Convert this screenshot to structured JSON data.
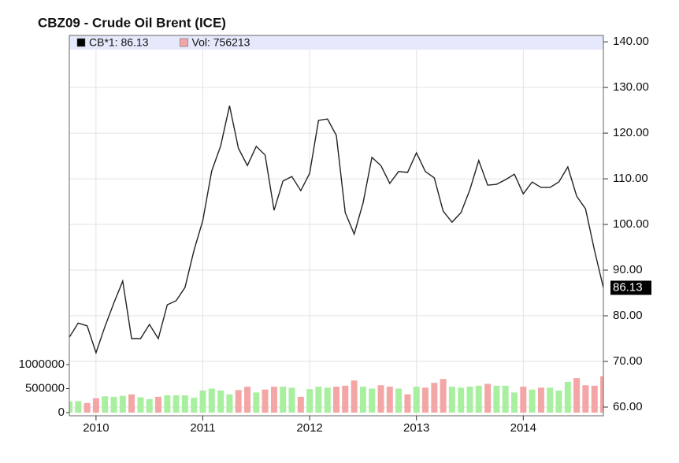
{
  "chart_data": {
    "type": "line",
    "title": "CBZ09 - Crude Oil Brent (ICE)",
    "x": [
      2009.75,
      2009.833,
      2009.917,
      2010,
      2010.083,
      2010.167,
      2010.25,
      2010.333,
      2010.417,
      2010.5,
      2010.583,
      2010.667,
      2010.75,
      2010.833,
      2010.917,
      2011,
      2011.083,
      2011.167,
      2011.25,
      2011.333,
      2011.417,
      2011.5,
      2011.583,
      2011.667,
      2011.75,
      2011.833,
      2011.917,
      2012,
      2012.083,
      2012.167,
      2012.25,
      2012.333,
      2012.417,
      2012.5,
      2012.583,
      2012.667,
      2012.75,
      2012.833,
      2012.917,
      2013,
      2013.083,
      2013.167,
      2013.25,
      2013.333,
      2013.417,
      2013.5,
      2013.583,
      2013.667,
      2013.75,
      2013.833,
      2013.917,
      2014,
      2014.083,
      2014.167,
      2014.25,
      2014.333,
      2014.417,
      2014.5,
      2014.583,
      2014.667,
      2014.75
    ],
    "series": [
      {
        "name": "CB*1: 86.13",
        "color": "#222222",
        "values": [
          75.3,
          78.4,
          77.8,
          71.9,
          77.6,
          82.8,
          87.6,
          75.0,
          75.0,
          78.1,
          75.0,
          82.4,
          83.3,
          86.2,
          94.3,
          100.9,
          111.7,
          117.2,
          126.0,
          116.7,
          112.9,
          117.1,
          115.2,
          103.1,
          109.5,
          110.5,
          107.4,
          111.2,
          122.8,
          123.1,
          119.5,
          102.6,
          97.9,
          104.7,
          114.7,
          112.9,
          109.0,
          111.6,
          111.4,
          115.7,
          111.6,
          110.2,
          102.9,
          100.5,
          102.6,
          107.6,
          114.0,
          108.6,
          108.8,
          109.8,
          111.0,
          106.7,
          109.3,
          108.1,
          108.1,
          109.3,
          112.6,
          106.2,
          103.4,
          94.3,
          86.13
        ]
      },
      {
        "name": "Vol: 756213",
        "color": "#f4a6a6",
        "axis": "y2",
        "values": [
          230000,
          240000,
          200000,
          300000,
          340000,
          330000,
          350000,
          380000,
          320000,
          280000,
          330000,
          360000,
          360000,
          360000,
          310000,
          460000,
          500000,
          460000,
          380000,
          470000,
          540000,
          420000,
          480000,
          540000,
          540000,
          520000,
          330000,
          490000,
          540000,
          520000,
          540000,
          560000,
          670000,
          540000,
          500000,
          570000,
          540000,
          500000,
          380000,
          540000,
          520000,
          620000,
          700000,
          540000,
          520000,
          540000,
          560000,
          600000,
          560000,
          560000,
          420000,
          540000,
          480000,
          520000,
          520000,
          460000,
          640000,
          720000,
          570000,
          560000,
          756213
        ],
        "colors": [
          "#a8f0a0",
          "#a8f0a0",
          "#f4a6a6",
          "#f4a6a6",
          "#a8f0a0",
          "#a8f0a0",
          "#a8f0a0",
          "#f4a6a6",
          "#a8f0a0",
          "#a8f0a0",
          "#f4a6a6",
          "#a8f0a0",
          "#a8f0a0",
          "#a8f0a0",
          "#a8f0a0",
          "#a8f0a0",
          "#a8f0a0",
          "#a8f0a0",
          "#a8f0a0",
          "#f4a6a6",
          "#f4a6a6",
          "#a8f0a0",
          "#f4a6a6",
          "#f4a6a6",
          "#a8f0a0",
          "#a8f0a0",
          "#f4a6a6",
          "#a8f0a0",
          "#a8f0a0",
          "#a8f0a0",
          "#f4a6a6",
          "#f4a6a6",
          "#f4a6a6",
          "#a8f0a0",
          "#a8f0a0",
          "#f4a6a6",
          "#f4a6a6",
          "#a8f0a0",
          "#f4a6a6",
          "#a8f0a0",
          "#f4a6a6",
          "#f4a6a6",
          "#f4a6a6",
          "#a8f0a0",
          "#a8f0a0",
          "#a8f0a0",
          "#a8f0a0",
          "#f4a6a6",
          "#a8f0a0",
          "#a8f0a0",
          "#a8f0a0",
          "#f4a6a6",
          "#a8f0a0",
          "#f4a6a6",
          "#a8f0a0",
          "#a8f0a0",
          "#a8f0a0",
          "#f4a6a6",
          "#f4a6a6",
          "#f4a6a6",
          "#f4a6a6"
        ]
      }
    ],
    "xlim": [
      2009.75,
      2014.75
    ],
    "xticks": [
      2010,
      2011,
      2012,
      2013,
      2014
    ],
    "ylim": [
      58.1,
      141.4
    ],
    "yticks": [
      {
        "value": 60,
        "label": "60.00"
      },
      {
        "value": 70,
        "label": "70.00"
      },
      {
        "value": 80,
        "label": "80.00"
      },
      {
        "value": 90,
        "label": "90.00"
      },
      {
        "value": 100,
        "label": "100.00"
      },
      {
        "value": 110,
        "label": "110.00"
      },
      {
        "value": 120,
        "label": "120.00"
      },
      {
        "value": 130,
        "label": "130.00"
      },
      {
        "value": 140,
        "label": "140.00"
      }
    ],
    "y2lim": [
      -65000,
      7850000
    ],
    "y2ticks": [
      0,
      500000,
      1000000
    ],
    "grid": true
  }
}
